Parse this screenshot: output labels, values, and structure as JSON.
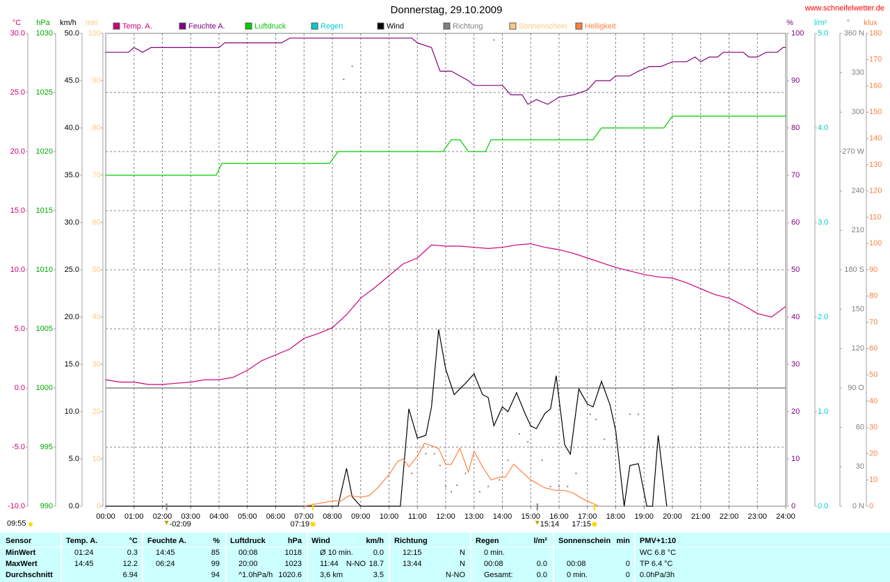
{
  "chart_data": {
    "type": "line",
    "title": "Donnerstag, 29.10.2009",
    "source": "www.schneifelwetter.de",
    "grid": true,
    "xlim": [
      0,
      24
    ],
    "xticks": [
      {
        "value": 0,
        "label": "00:00"
      },
      {
        "value": 1,
        "label": "01:00"
      },
      {
        "value": 2,
        "label": "02:00"
      },
      {
        "value": 3,
        "label": "03:00"
      },
      {
        "value": 4,
        "label": "04:00"
      },
      {
        "value": 5,
        "label": "05:00"
      },
      {
        "value": 6,
        "label": "06:00"
      },
      {
        "value": 7,
        "label": "07:00"
      },
      {
        "value": 8,
        "label": "08:00"
      },
      {
        "value": 9,
        "label": "09:00"
      },
      {
        "value": 10,
        "label": "10:00"
      },
      {
        "value": 11,
        "label": "11:00"
      },
      {
        "value": 12,
        "label": "12:00"
      },
      {
        "value": 13,
        "label": "13:00"
      },
      {
        "value": 14,
        "label": "14:00"
      },
      {
        "value": 15,
        "label": "15:00"
      },
      {
        "value": 16,
        "label": "16:00"
      },
      {
        "value": 17,
        "label": "17:00"
      },
      {
        "value": 18,
        "label": "18:00"
      },
      {
        "value": 19,
        "label": "19:00"
      },
      {
        "value": 20,
        "label": "20:00"
      },
      {
        "value": 21,
        "label": "21:00"
      },
      {
        "value": 22,
        "label": "22:00"
      },
      {
        "value": 23,
        "label": "23:00"
      },
      {
        "value": 24,
        "label": "24:00"
      }
    ],
    "axes": [
      {
        "id": "temp",
        "label": "°C",
        "color": "#cc0077",
        "side": "left",
        "grid": true,
        "freeze_line": 0,
        "ylim": [
          -10,
          30
        ],
        "yticks": [
          {
            "value": -10,
            "label": "-10.0"
          },
          {
            "value": -5,
            "label": "-5.0"
          },
          {
            "value": 0,
            "label": "0.0"
          },
          {
            "value": 5,
            "label": "5.0"
          },
          {
            "value": 10,
            "label": "10.0"
          },
          {
            "value": 15,
            "label": "15.0"
          },
          {
            "value": 20,
            "label": "20.0"
          },
          {
            "value": 25,
            "label": "25.0"
          },
          {
            "value": 30,
            "label": "30.0"
          }
        ]
      },
      {
        "id": "hpa",
        "label": "hPa",
        "color": "#00aa00",
        "side": "left",
        "ylim": [
          990,
          1030
        ],
        "yticks": [
          990,
          995,
          1000,
          1005,
          1010,
          1015,
          1020,
          1025,
          1030
        ]
      },
      {
        "id": "kmh",
        "label": "km/h",
        "color": "#000000",
        "side": "left",
        "ylim": [
          0,
          50
        ],
        "yticks": [
          {
            "value": 0,
            "label": "0.0"
          },
          {
            "value": 5,
            "label": "5.0"
          },
          {
            "value": 10,
            "label": "10.0"
          },
          {
            "value": 15,
            "label": "15.0"
          },
          {
            "value": 20,
            "label": "20.0"
          },
          {
            "value": 25,
            "label": "25.0"
          },
          {
            "value": 30,
            "label": "30.0"
          },
          {
            "value": 35,
            "label": "35.0"
          },
          {
            "value": 40,
            "label": "40.0"
          },
          {
            "value": 45,
            "label": "45.0"
          },
          {
            "value": 50,
            "label": "50.0"
          }
        ]
      },
      {
        "id": "min",
        "label": "min",
        "color": "#ffc880",
        "side": "left",
        "ylim": [
          0,
          100
        ],
        "yticks": [
          0,
          10,
          20,
          30,
          40,
          50,
          60,
          70,
          80,
          90,
          100
        ]
      },
      {
        "id": "pct",
        "label": "%",
        "color": "#800080",
        "side": "right",
        "ylim": [
          0,
          100
        ],
        "yticks": [
          0,
          10,
          20,
          30,
          40,
          50,
          60,
          70,
          80,
          90,
          100
        ]
      },
      {
        "id": "rain",
        "label": "l/m²",
        "color": "#00cccc",
        "side": "right",
        "ylim": [
          0,
          5
        ],
        "yticks": [
          {
            "value": 0,
            "label": "0.0"
          },
          {
            "value": 1,
            "label": "1.0"
          },
          {
            "value": 2,
            "label": "2.0"
          },
          {
            "value": 3,
            "label": "3.0"
          },
          {
            "value": 4,
            "label": "4.0"
          },
          {
            "value": 5,
            "label": "5.0"
          }
        ]
      },
      {
        "id": "deg",
        "label": "°",
        "color": "#808080",
        "side": "right",
        "ylim": [
          0,
          360
        ],
        "yticks": [
          {
            "value": 0,
            "label": "0    N"
          },
          30,
          60,
          {
            "value": 90,
            "label": "90  O"
          },
          120,
          150,
          {
            "value": 180,
            "label": "180 S"
          },
          210,
          240,
          {
            "value": 270,
            "label": "270 W"
          },
          300,
          330,
          {
            "value": 360,
            "label": "360 N"
          }
        ]
      },
      {
        "id": "klux",
        "label": "klux",
        "color": "#ff8040",
        "side": "right",
        "ylim": [
          0,
          180
        ],
        "yticks": [
          0,
          10,
          20,
          30,
          40,
          50,
          60,
          70,
          80,
          90,
          100,
          110,
          120,
          130,
          140,
          150,
          160,
          170,
          180
        ]
      }
    ],
    "series": [
      {
        "name": "Temp. A.",
        "color": "#cc0077",
        "axis": "temp",
        "style": "line",
        "x": [
          0,
          0.5,
          1,
          1.5,
          2,
          2.5,
          3,
          3.5,
          4,
          4.5,
          5,
          5.5,
          6,
          6.5,
          7,
          7.5,
          8,
          8.5,
          9,
          9.5,
          10,
          10.5,
          11,
          11.5,
          12,
          12.5,
          13,
          13.5,
          14,
          14.5,
          15,
          15.5,
          16,
          16.5,
          17,
          17.5,
          18,
          18.5,
          19,
          19.5,
          20,
          20.5,
          21,
          21.5,
          22,
          22.5,
          23,
          23.5,
          24
        ],
        "values": [
          0.7,
          0.5,
          0.5,
          0.3,
          0.3,
          0.4,
          0.5,
          0.7,
          0.7,
          0.9,
          1.5,
          2.3,
          2.8,
          3.3,
          4.2,
          4.6,
          5.1,
          6.2,
          7.6,
          8.5,
          9.5,
          10.5,
          11.0,
          12.1,
          12.0,
          12.0,
          11.9,
          11.8,
          11.9,
          12.1,
          12.2,
          11.9,
          11.7,
          11.4,
          11.0,
          10.6,
          10.2,
          9.9,
          9.6,
          9.4,
          9.3,
          8.9,
          8.4,
          7.9,
          7.6,
          7.0,
          6.3,
          6.0,
          6.9
        ]
      },
      {
        "name": "Feuchte A.",
        "color": "#800080",
        "axis": "pct",
        "style": "line",
        "x": [
          0,
          0.8,
          1.0,
          1.3,
          1.6,
          4.0,
          4.2,
          6.2,
          6.5,
          10.8,
          11.0,
          11.5,
          11.8,
          12.2,
          12.8,
          13.0,
          14.0,
          14.3,
          14.7,
          14.9,
          15.2,
          15.6,
          16.0,
          16.5,
          17.0,
          17.3,
          17.8,
          18.0,
          18.5,
          18.8,
          19.2,
          19.6,
          20.0,
          20.5,
          20.8,
          21.0,
          21.3,
          21.6,
          21.8,
          22.5,
          22.7,
          23.0,
          23.3,
          23.7,
          23.9,
          24
        ],
        "values": [
          96,
          96,
          97,
          96,
          97,
          97,
          98,
          98,
          99,
          99,
          98,
          97,
          92,
          92,
          90,
          89,
          89,
          87,
          87,
          85,
          86,
          85,
          86.5,
          87,
          88,
          90,
          90,
          91,
          91,
          92,
          93,
          93,
          94,
          94,
          95,
          94,
          95,
          95,
          96,
          96,
          95,
          95,
          96,
          96,
          97,
          97
        ]
      },
      {
        "name": "Luftdruck",
        "color": "#00cc00",
        "axis": "hpa",
        "style": "line",
        "x": [
          0,
          3.9,
          4.1,
          7.9,
          8.2,
          11.9,
          12.2,
          12.5,
          12.8,
          13.4,
          13.6,
          17.2,
          17.5,
          19.7,
          20.0,
          24
        ],
        "values": [
          1018,
          1018,
          1019,
          1019,
          1020,
          1020,
          1021,
          1021,
          1020,
          1020,
          1021,
          1021,
          1022,
          1022,
          1023,
          1023
        ]
      },
      {
        "name": "Regen",
        "color": "#00cccc",
        "axis": "rain",
        "style": "line",
        "x": [],
        "values": []
      },
      {
        "name": "Wind",
        "color": "#000000",
        "axis": "kmh",
        "style": "line",
        "x": [
          0,
          8.2,
          8.5,
          8.7,
          9.0,
          10.4,
          10.7,
          11.0,
          11.3,
          11.5,
          11.75,
          12.0,
          12.3,
          12.7,
          13.0,
          13.3,
          13.5,
          13.7,
          14.0,
          14.2,
          14.5,
          14.8,
          15.0,
          15.2,
          15.5,
          15.7,
          15.9,
          16.2,
          16.4,
          16.7,
          17.0,
          17.2,
          17.5,
          17.8,
          18.0,
          18.3,
          18.5,
          18.8,
          19.1,
          19.3,
          19.5,
          19.8
        ],
        "values": [
          0,
          0,
          4,
          1,
          0,
          0,
          10.3,
          7.2,
          7.5,
          10.5,
          18.7,
          14.5,
          11.8,
          13,
          14,
          11.8,
          11.5,
          8.5,
          10.5,
          10,
          12,
          9.8,
          8.5,
          8.2,
          9.8,
          10.3,
          13.8,
          6.5,
          5.5,
          12.4,
          10.8,
          10.5,
          13.2,
          10.7,
          8,
          0,
          4.3,
          4.5,
          0,
          0,
          7.5,
          0
        ]
      },
      {
        "name": "Richtung",
        "color": "#808080",
        "axis": "deg",
        "style": "dots",
        "x": [
          8.4,
          8.7,
          13.7,
          10.8,
          11.3,
          11.6,
          11.8,
          12.0,
          12.2,
          12.4,
          12.7,
          13.2,
          13.5,
          13.9,
          14.2,
          14.6,
          14.9,
          15.4,
          15.7,
          16.0,
          16.3,
          16.6,
          17.1,
          17.3,
          17.6,
          18.5,
          18.8
        ],
        "values": [
          325,
          335,
          355,
          25,
          40,
          40,
          31,
          15,
          11,
          16,
          25,
          11,
          15,
          20,
          35,
          55,
          49,
          35,
          15,
          15,
          15,
          25,
          70,
          66,
          51,
          70,
          70
        ]
      },
      {
        "name": "Sonnenschein",
        "color": "#ffc880",
        "axis": "min",
        "style": "line",
        "x": [],
        "values": []
      },
      {
        "name": "Helligkeit",
        "color": "#ff8040",
        "axis": "klux",
        "style": "line",
        "x": [
          7.0,
          7.5,
          8.0,
          8.3,
          8.6,
          9.0,
          9.3,
          9.6,
          10.0,
          10.3,
          10.5,
          10.7,
          11.0,
          11.25,
          11.5,
          11.75,
          12.0,
          12.2,
          12.5,
          12.8,
          13.0,
          13.3,
          13.6,
          13.9,
          14.1,
          14.4,
          14.7,
          15.0,
          15.5,
          15.9,
          16.2,
          16.5,
          16.8,
          17.2,
          17.4
        ],
        "values": [
          0,
          1,
          2,
          2,
          4,
          3.5,
          4,
          7,
          12,
          17,
          18,
          15,
          19,
          24,
          23,
          22,
          16,
          16,
          22,
          13,
          21,
          15,
          10,
          11,
          11,
          16,
          13,
          10,
          7,
          6,
          6,
          5,
          3,
          1,
          0
        ]
      }
    ],
    "day_length": "09:55",
    "annotations": [
      {
        "x": 2.15,
        "label": "-02:09",
        "kind": "moon"
      },
      {
        "x": 7.317,
        "label": "07:19",
        "kind": "sun"
      },
      {
        "x": 15.233,
        "label": "15:14",
        "kind": "moon"
      },
      {
        "x": 17.25,
        "label": "17:15",
        "kind": "sun"
      }
    ]
  },
  "table": {
    "header": [
      {
        "label": "Sensor"
      },
      {
        "label": "Temp. A.",
        "unit": "°C"
      },
      {
        "label": "Feuchte A.",
        "unit": "%"
      },
      {
        "label": "Luftdruck",
        "unit": "hPa"
      },
      {
        "label": "Wind",
        "unit": "km/h"
      },
      {
        "label": "Richtung"
      },
      {
        "label": "Regen",
        "unit": "l/m²"
      },
      {
        "label": "Sonnenschein",
        "unit": "min"
      },
      {
        "label": "PMV+1:10"
      }
    ],
    "rows": [
      {
        "label": "MinWert",
        "cells": [
          {
            "left": "01:24",
            "right": "0.3"
          },
          {
            "left": "14:45",
            "right": "85"
          },
          {
            "left": "00:08",
            "right": "1018"
          },
          {
            "left": "Ø 10 min.",
            "right": "0.0"
          },
          {
            "left": "12:15",
            "right": "N"
          },
          {
            "left": "0 min."
          },
          {},
          {
            "left": "WC 6.8 °C"
          }
        ]
      },
      {
        "label": "MaxWert",
        "cells": [
          {
            "left": "14:45",
            "right": "12.2"
          },
          {
            "left": "06:24",
            "right": "99"
          },
          {
            "left": "20:00",
            "right": "1023"
          },
          {
            "left": "11:44",
            "mid": "N-NO",
            "right": "18.7"
          },
          {
            "left": "13:44",
            "right": "N"
          },
          {
            "left": "00:08",
            "right": "0.0"
          },
          {
            "left": "00:08",
            "right": "0"
          },
          {
            "left": "TP 6.4 °C"
          }
        ]
      },
      {
        "label": "Durchschnitt",
        "cells": [
          {
            "right": "6.94"
          },
          {
            "right": "94"
          },
          {
            "left": "^1.0hPa/h",
            "right": "1020.6"
          },
          {
            "left": "3,6 km",
            "right": "3.5"
          },
          {
            "right": "N-NO"
          },
          {
            "left": "Gesamt:",
            "right": "0.0"
          },
          {
            "left": "0 min.",
            "right": "0"
          },
          {
            "left": "0.0hPa/3h"
          }
        ]
      }
    ]
  }
}
